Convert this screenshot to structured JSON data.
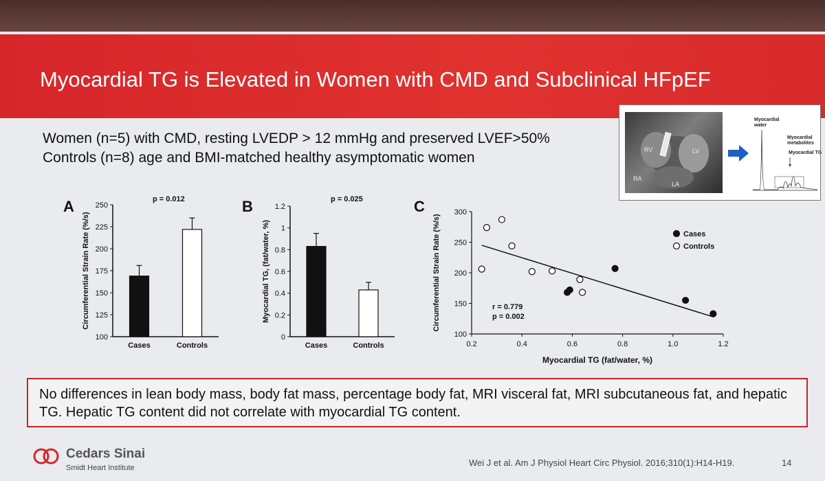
{
  "title": "Myocardial TG is Elevated in Women with CMD and Subclinical HFpEF",
  "subtitle_lines": [
    "Women (n=5) with CMD, resting LVEDP > 12 mmHg and preserved LVEF>50%",
    "Controls (n=8) age and BMI-matched healthy asymptomatic women"
  ],
  "inset": {
    "mri_labels": [
      "RV",
      "LV",
      "RA",
      "LA"
    ],
    "spectrum_labels": {
      "water": "Myocardial water",
      "metabolites": "Myocardial metabolites",
      "tg": "Myocardial TG"
    }
  },
  "panels": {
    "A": {
      "letter": "A",
      "pval": "p = 0.012"
    },
    "B": {
      "letter": "B",
      "pval": "p = 0.025"
    },
    "C": {
      "letter": "C",
      "stats": [
        "r = 0.779",
        "p = 0.002"
      ]
    }
  },
  "chart_data": [
    {
      "type": "bar",
      "categories": [
        "Cases",
        "Controls"
      ],
      "values": [
        169,
        222
      ],
      "errors": [
        12,
        13
      ],
      "ylabel": "Circumferential Strain Rate (%/s)",
      "ylim": [
        100,
        250
      ],
      "yticks": [
        100,
        125,
        150,
        175,
        200,
        225,
        250
      ],
      "fills": [
        "#111111",
        "#ffffff"
      ]
    },
    {
      "type": "bar",
      "categories": [
        "Cases",
        "Controls"
      ],
      "values": [
        0.83,
        0.43
      ],
      "errors": [
        0.12,
        0.07
      ],
      "ylabel": "Myocardial TG, (fat/water, %)",
      "ylim": [
        0,
        1.2
      ],
      "yticks": [
        "0",
        "0.2",
        "0.4",
        "0.6",
        "0.8",
        "1",
        "1.2"
      ],
      "fills": [
        "#111111",
        "#ffffff"
      ]
    },
    {
      "type": "scatter",
      "xlabel": "Myocardial TG (fat/water, %)",
      "ylabel": "Circumferential Strain Rate (%/s)",
      "xlim": [
        0.2,
        1.2
      ],
      "ylim": [
        100,
        300
      ],
      "xticks": [
        "0.2",
        "0.4",
        "0.6",
        "0.8",
        "1.0",
        "1.2"
      ],
      "yticks": [
        "100",
        "150",
        "200",
        "250",
        "300"
      ],
      "series": [
        {
          "name": "Cases",
          "filled": true,
          "points": [
            [
              0.58,
              168
            ],
            [
              0.59,
              172
            ],
            [
              0.77,
              207
            ],
            [
              1.05,
              155
            ],
            [
              1.16,
              133
            ]
          ]
        },
        {
          "name": "Controls",
          "filled": false,
          "points": [
            [
              0.24,
              206
            ],
            [
              0.26,
              274
            ],
            [
              0.32,
              287
            ],
            [
              0.36,
              244
            ],
            [
              0.44,
              202
            ],
            [
              0.52,
              203
            ],
            [
              0.63,
              189
            ],
            [
              0.64,
              168
            ]
          ]
        }
      ],
      "trendline": [
        [
          0.24,
          245
        ],
        [
          1.16,
          128
        ]
      ],
      "legend": "top-right"
    }
  ],
  "note": "No differences in lean body mass, body fat mass, percentage body fat, MRI visceral fat, MRI subcutaneous fat, and hepatic TG.  Hepatic TG content did not correlate with myocardial TG content.",
  "footer": {
    "logo_name": "Cedars Sinai",
    "logo_sub": "Smidt Heart Institute",
    "citation": "Wei J et al. Am J Physiol Heart Circ Physiol. 2016;310(1):H14-H19.",
    "page": "14"
  },
  "colors": {
    "banner": "#d7262a",
    "note_border": "#c9222a",
    "arrow": "#1f5fc0"
  }
}
